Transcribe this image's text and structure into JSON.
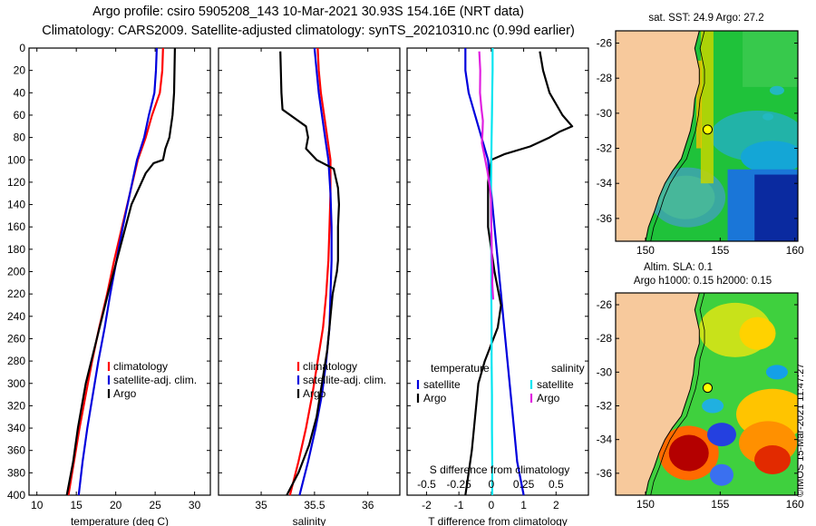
{
  "title_line1": "Argo profile: csiro 5905208_143 10-Mar-2021 30.93S 154.16E (NRT data)",
  "title_line2": "Climatology: CARS2009. Satellite-adjusted climatology: synTS_20210310.nc (0.99d earlier)",
  "copyright": "©IMOS 15-Mar-2021 11:47:27",
  "colors": {
    "climatology": "#ff0000",
    "satellite": "#0000dd",
    "argo": "#000000",
    "salinity_satellite": "#00e5f0",
    "salinity_argo": "#e020e0",
    "land": "#f7c99c",
    "coast": "#000000",
    "marker": "#ffff00"
  },
  "chart_data": [
    {
      "type": "line",
      "id": "temperature",
      "xlabel": "temperature (deg C)",
      "xlim": [
        9,
        32
      ],
      "ylim": [
        0,
        400
      ],
      "y_inverted": true,
      "xticks": [
        10,
        15,
        20,
        25,
        30
      ],
      "yticks": [
        0,
        20,
        40,
        60,
        80,
        100,
        120,
        140,
        160,
        180,
        200,
        220,
        240,
        260,
        280,
        300,
        320,
        340,
        360,
        380,
        400
      ],
      "legend": [
        "climatology",
        "satellite-adj. clim.",
        "Argo"
      ],
      "legend_position": "lower-right",
      "series": [
        {
          "name": "climatology",
          "color_key": "climatology",
          "x": [
            26.0,
            25.9,
            25.6,
            24.6,
            23.8,
            22.8,
            21.8,
            20.8,
            19.8,
            18.9,
            17.9,
            17.0,
            16.2,
            15.4,
            14.7,
            14.0
          ],
          "y": [
            0,
            20,
            40,
            60,
            80,
            100,
            130,
            160,
            190,
            220,
            250,
            280,
            310,
            340,
            370,
            400
          ]
        },
        {
          "name": "satellite-adj. clim.",
          "color_key": "satellite",
          "x": [
            25.2,
            25.1,
            24.9,
            24.2,
            23.6,
            22.7,
            21.8,
            20.9,
            20.1,
            19.3,
            18.6,
            17.8,
            17.1,
            16.4,
            15.8,
            15.3
          ],
          "y": [
            0,
            20,
            40,
            60,
            80,
            100,
            130,
            160,
            190,
            220,
            250,
            280,
            310,
            340,
            370,
            400
          ]
        },
        {
          "name": "Argo",
          "color_key": "argo",
          "x": [
            27.5,
            27.4,
            27.2,
            26.8,
            26.3,
            26.0,
            24.8,
            23.8,
            22.0,
            20.5,
            19.0,
            17.6,
            16.2,
            15.2,
            14.6,
            13.8
          ],
          "y": [
            0,
            40,
            60,
            80,
            90,
            100,
            103,
            112,
            140,
            180,
            220,
            260,
            300,
            340,
            370,
            400
          ]
        }
      ]
    },
    {
      "type": "line",
      "id": "salinity",
      "xlabel": "salinity",
      "xlim": [
        34.6,
        36.3
      ],
      "ylim": [
        0,
        400
      ],
      "y_inverted": true,
      "xticks": [
        35,
        35.5,
        36
      ],
      "xticklabels": [
        "35",
        "35.5",
        "36"
      ],
      "legend": [
        "climatology",
        "satellite-adj. clim.",
        "Argo"
      ],
      "legend_position": "lower-right",
      "series": [
        {
          "name": "climatology",
          "color_key": "climatology",
          "x": [
            35.53,
            35.54,
            35.56,
            35.59,
            35.62,
            35.65,
            35.65,
            35.64,
            35.63,
            35.61,
            35.58,
            35.53,
            35.48,
            35.42,
            35.35,
            35.27
          ],
          "y": [
            0,
            20,
            40,
            60,
            80,
            100,
            130,
            160,
            190,
            220,
            250,
            280,
            310,
            340,
            370,
            400
          ]
        },
        {
          "name": "satellite-adj. clim.",
          "color_key": "satellite",
          "x": [
            35.5,
            35.52,
            35.54,
            35.57,
            35.6,
            35.63,
            35.65,
            35.66,
            35.66,
            35.65,
            35.64,
            35.61,
            35.57,
            35.51,
            35.44,
            35.36
          ],
          "y": [
            0,
            20,
            40,
            60,
            80,
            100,
            130,
            160,
            190,
            220,
            250,
            280,
            310,
            340,
            370,
            400
          ]
        },
        {
          "name": "Argo",
          "color_key": "argo",
          "x": [
            35.18,
            35.19,
            35.2,
            35.42,
            35.44,
            35.42,
            35.47,
            35.52,
            35.68,
            35.72,
            35.73,
            35.72,
            35.72,
            35.71,
            35.67,
            35.65,
            35.62,
            35.57,
            35.52,
            35.45,
            35.35,
            35.24
          ],
          "y": [
            3,
            40,
            55,
            70,
            80,
            90,
            95,
            100,
            108,
            125,
            140,
            160,
            190,
            200,
            220,
            240,
            270,
            300,
            330,
            355,
            380,
            400
          ]
        }
      ]
    },
    {
      "type": "line",
      "id": "difference",
      "xlabel": "T difference from climatology",
      "xlabel_top": "S difference from climatology",
      "xlim": [
        -2.6,
        3.0
      ],
      "ylim": [
        0,
        400
      ],
      "y_inverted": true,
      "xticks": [
        -2,
        -1,
        0,
        1,
        2
      ],
      "secondary_xlim": [
        -0.65,
        0.75
      ],
      "secondary_xticklabels": [
        "-0.5",
        "-0.25",
        "0",
        "0.25",
        "0.5"
      ],
      "legend_temperature": {
        "title": "temperature",
        "items": [
          "satellite",
          "Argo"
        ]
      },
      "legend_salinity": {
        "title": "salinity",
        "items": [
          "satellite",
          "Argo"
        ]
      },
      "series": [
        {
          "name": "temperature satellite",
          "color_key": "satellite",
          "x": [
            -0.8,
            -0.8,
            -0.7,
            -0.5,
            -0.3,
            -0.1,
            0.0,
            0.1,
            0.2,
            0.3,
            0.4,
            0.5,
            0.6,
            0.7,
            0.8,
            1.0
          ],
          "y": [
            0,
            20,
            40,
            60,
            80,
            100,
            130,
            160,
            190,
            220,
            250,
            280,
            310,
            340,
            370,
            400
          ]
        },
        {
          "name": "temperature Argo",
          "color_key": "argo",
          "x": [
            1.5,
            1.6,
            1.8,
            2.2,
            2.5,
            2.1,
            1.8,
            1.2,
            0.4,
            0.0,
            -0.1,
            -0.1,
            0.1,
            0.3,
            0.2,
            -0.2,
            -0.4,
            -0.5,
            -0.6,
            -0.7,
            -0.8
          ],
          "y": [
            3,
            20,
            40,
            60,
            70,
            75,
            80,
            88,
            95,
            100,
            120,
            160,
            200,
            230,
            250,
            280,
            300,
            330,
            360,
            380,
            400
          ]
        },
        {
          "name": "salinity satellite",
          "color_key": "salinity_satellite",
          "x": [
            0.04,
            0.04,
            0.03,
            0.02,
            0.01,
            0.0,
            -0.01,
            0.0,
            0.0,
            0.0,
            0.01,
            0.01,
            0.02,
            0.02,
            0.03,
            0.03
          ],
          "y": [
            0,
            20,
            40,
            60,
            80,
            100,
            130,
            160,
            190,
            220,
            250,
            280,
            310,
            340,
            370,
            400
          ]
        },
        {
          "name": "salinity Argo",
          "color_key": "salinity_argo",
          "x": [
            -0.37,
            -0.34,
            -0.35,
            -0.3,
            -0.26,
            -0.27,
            -0.29,
            -0.22,
            -0.12,
            -0.04,
            -0.01,
            0.0,
            0.02,
            0.04,
            0.03,
            0.05,
            0.06
          ],
          "y": [
            3,
            20,
            40,
            55,
            65,
            75,
            85,
            95,
            110,
            125,
            135,
            160,
            190,
            200,
            210,
            220,
            225
          ]
        }
      ]
    },
    {
      "type": "heatmap",
      "id": "sst_map",
      "title": "sat. SST: 24.9 Argo: 27.2",
      "xlim": [
        148,
        160.2
      ],
      "ylim": [
        -37.3,
        -25.3
      ],
      "xticks": [
        150,
        155,
        160
      ],
      "yticks": [
        -26,
        -28,
        -30,
        -32,
        -34,
        -36
      ],
      "marker": {
        "lon": 154.16,
        "lat": -30.93
      }
    },
    {
      "type": "heatmap",
      "id": "sla_map",
      "title": "Altim. SLA: 0.1",
      "subtitle": "Argo h1000: 0.15 h2000: 0.15",
      "xlim": [
        148,
        160.2
      ],
      "ylim": [
        -37.3,
        -25.3
      ],
      "xticks": [
        150,
        155,
        160
      ],
      "yticks": [
        -26,
        -28,
        -30,
        -32,
        -34,
        -36
      ],
      "marker": {
        "lon": 154.16,
        "lat": -30.93
      }
    }
  ]
}
